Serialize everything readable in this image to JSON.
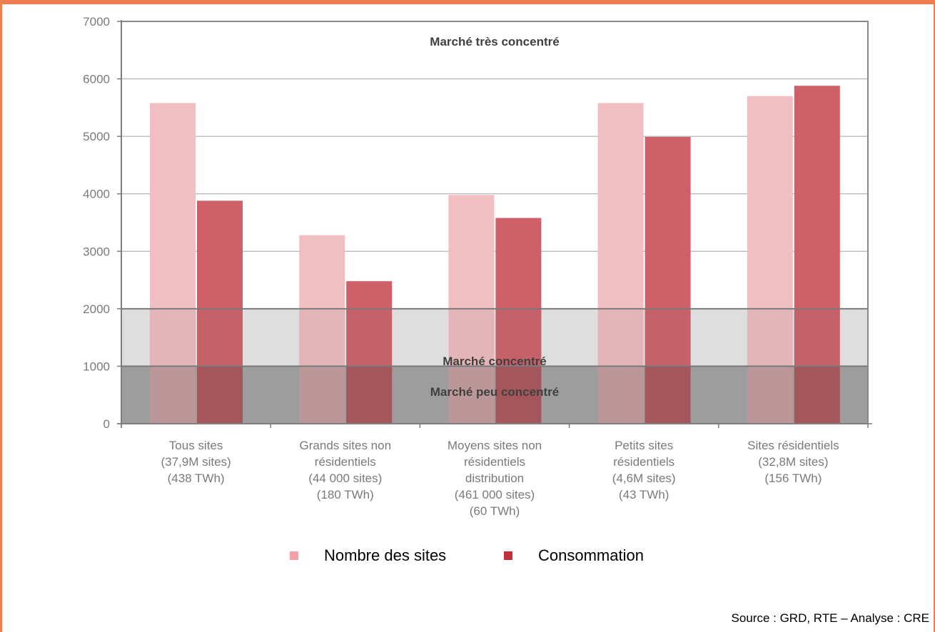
{
  "colors": {
    "frame": "#ef7d52",
    "series_sites": "#f1bec2",
    "series_consumption": "#d06068",
    "zone_mid": "#ebebeb",
    "zone_low": "#c6c6c6",
    "legend_sites": "#f4a0a8",
    "legend_consumption": "#c0303a"
  },
  "chart_data": {
    "type": "bar",
    "categories": [
      [
        "Tous sites",
        "(37,9M sites)",
        "(438 TWh)"
      ],
      [
        "Grands sites non",
        "résidentiels",
        "(44 000 sites)",
        "(180 TWh)"
      ],
      [
        "Moyens sites non",
        "résidentiels",
        "distribution",
        "(461 000 sites)",
        "(60 TWh)"
      ],
      [
        "Petits sites",
        "résidentiels",
        "(4,6M sites)",
        "(43 TWh)"
      ],
      [
        "Sites résidentiels",
        "(32,8M sites)",
        "(156 TWh)"
      ]
    ],
    "series": [
      {
        "name": "Nombre des sites",
        "values": [
          5580,
          3280,
          3980,
          5580,
          5700
        ]
      },
      {
        "name": "Consommation",
        "values": [
          3880,
          2480,
          3580,
          4990,
          5880
        ]
      }
    ],
    "ylim": [
      0,
      7000
    ],
    "yticks": [
      "0",
      "1000",
      "2000",
      "3000",
      "4000",
      "5000",
      "6000",
      "7000"
    ],
    "grid": true,
    "legend_position": "bottom",
    "zones": [
      {
        "label": "Marché peu concentré",
        "from": 0,
        "to": 1000
      },
      {
        "label": "Marché concentré",
        "from": 1000,
        "to": 2000
      },
      {
        "label": "Marché très concentré",
        "from": 2000,
        "to": 7000
      }
    ]
  },
  "source": "Source : GRD, RTE – Analyse : CRE"
}
